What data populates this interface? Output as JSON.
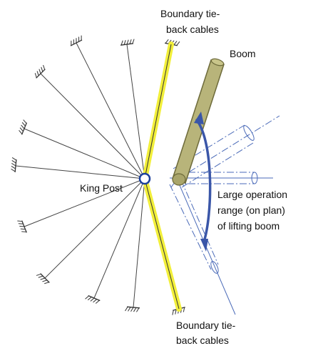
{
  "labels": {
    "boundary_top": [
      "Boundary tie-",
      "back cables"
    ],
    "boom": "Boom",
    "king_post": "King Post",
    "operation_range": [
      "Large operation",
      "range (on plan)",
      "of lifting boom"
    ],
    "boundary_bottom": [
      "Boundary tie-",
      "back cables"
    ]
  },
  "colors": {
    "cable": "#444444",
    "boundary_cable": "#f2ef3a",
    "boom_fill": "#b8b47a",
    "boom_stroke": "#6d6a3a",
    "king_post": "#1b3f9c",
    "arc": "#3a56a8",
    "alt_boom": "#4a6ab8"
  },
  "icons": {
    "anchor": "hatched-anchor-icon",
    "arc_arrow": "double-arrow-icon"
  }
}
